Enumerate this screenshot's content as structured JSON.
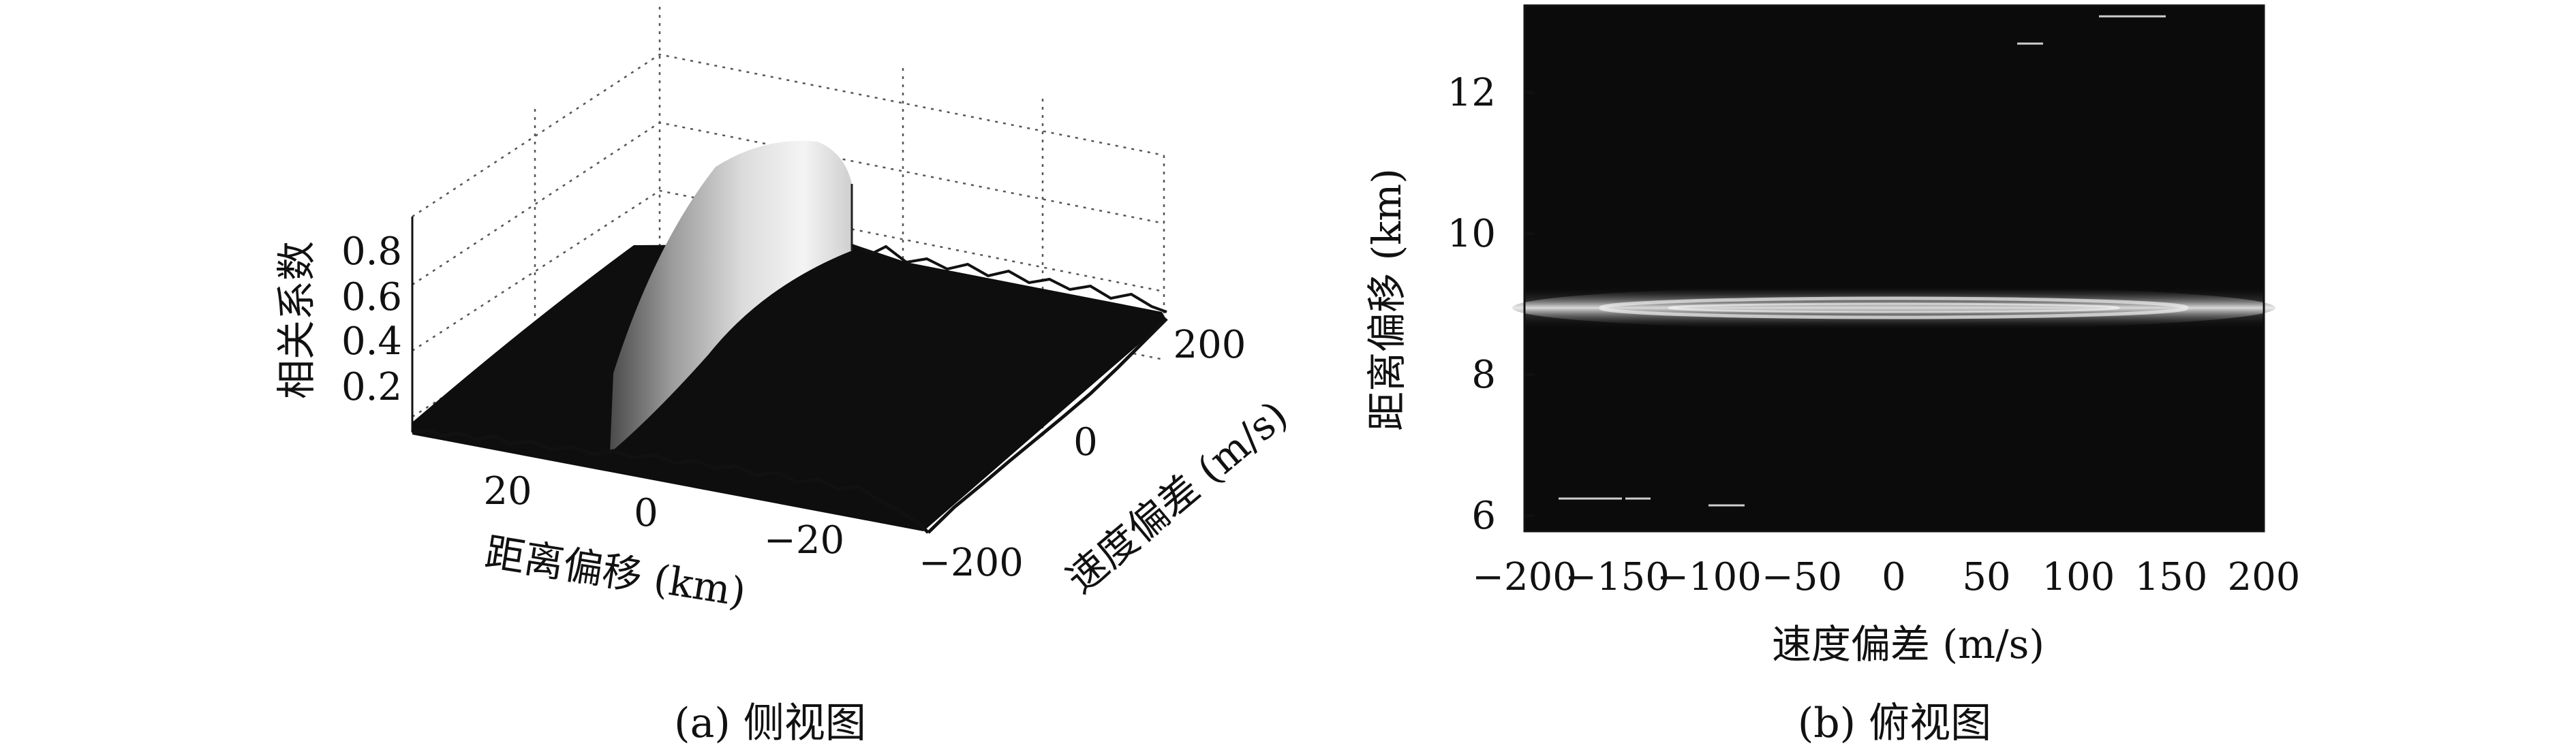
{
  "chart_data": [
    {
      "type": "surface",
      "caption": "(a) 侧视图",
      "xlabel": "距离偏移 (km)",
      "ylabel": "速度偏差 (m/s)",
      "zlabel": "相关系数",
      "x_ticks": [
        "20",
        "0",
        "−20"
      ],
      "y_ticks": [
        "200",
        "0",
        "−200"
      ],
      "z_ticks": [
        "0.8",
        "0.6",
        "0.4",
        "0.2"
      ],
      "xlim": [
        -35,
        35
      ],
      "ylim": [
        -200,
        200
      ],
      "zlim": [
        0,
        1
      ],
      "peak": {
        "distance_km": 0,
        "velocity_ms": 0,
        "correlation": 0.95
      },
      "background_correlation": 0.07,
      "grid": true
    },
    {
      "type": "heatmap",
      "caption": "(b) 俯视图",
      "xlabel": "速度偏差 (m/s)",
      "ylabel": "距离偏移 (km)",
      "x_ticks": [
        "−200",
        "−150",
        "−100",
        "−50",
        "0",
        "50",
        "100",
        "150",
        "200"
      ],
      "y_ticks": [
        "6",
        "8",
        "10",
        "12"
      ],
      "xlim": [
        -200,
        200
      ],
      "ylim": [
        5.8,
        13.2
      ],
      "band": {
        "center_km": 8.95,
        "width_km": 0.35
      },
      "colormap": "gray",
      "background": "#0b0b0b"
    }
  ]
}
